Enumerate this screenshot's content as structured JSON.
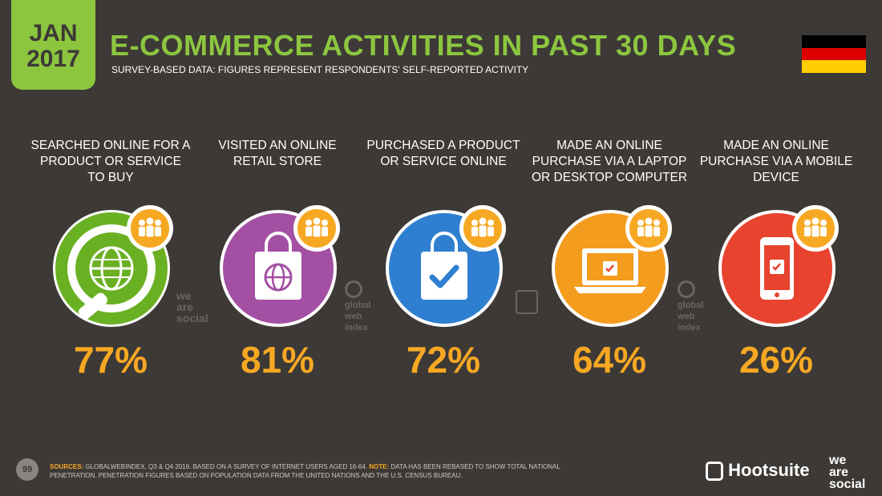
{
  "header": {
    "month": "JAN",
    "year": "2017",
    "title": "E-COMMERCE ACTIVITIES IN PAST 30 DAYS",
    "subtitle": "SURVEY-BASED DATA: FIGURES REPRESENT RESPONDENTS' SELF-REPORTED ACTIVITY"
  },
  "flag": {
    "colors": [
      "#000000",
      "#dd0000",
      "#ffce00"
    ]
  },
  "activities": [
    {
      "label": "SEARCHED ONLINE FOR A PRODUCT OR SERVICE TO BUY",
      "value": "77%",
      "color": "#6ab023",
      "icon": "globe-icon"
    },
    {
      "label": "VISITED AN ONLINE RETAIL STORE",
      "value": "81%",
      "color": "#a34fa3",
      "icon": "shopping-bag-globe-icon"
    },
    {
      "label": "PURCHASED A PRODUCT OR SERVICE ONLINE",
      "value": "72%",
      "color": "#2f7fd1",
      "icon": "shopping-bag-check-icon"
    },
    {
      "label": "MADE AN ONLINE PURCHASE VIA A LAPTOP OR DESKTOP COMPUTER",
      "value": "64%",
      "color": "#f39c1e",
      "icon": "laptop-icon"
    },
    {
      "label": "MADE AN ONLINE PURCHASE VIA A MOBILE DEVICE",
      "value": "26%",
      "color": "#e8432f",
      "icon": "mobile-phone-icon"
    }
  ],
  "watermarks": {
    "we_are_social": [
      "we",
      "are",
      "social"
    ],
    "gwi": [
      "global",
      "web",
      "index"
    ]
  },
  "footer": {
    "page": "99",
    "sources_label": "SOURCES:",
    "sources_text": "GLOBALWEBINDEX, Q3 & Q4 2016. BASED ON A SURVEY OF INTERNET USERS AGED 16-64.",
    "note_label": "NOTE:",
    "note_text": "DATA HAS BEEN REBASED TO SHOW TOTAL NATIONAL PENETRATION. PENETRATION FIGURES BASED ON POPULATION DATA FROM THE UNITED NATIONS AND THE U.S. CENSUS BUREAU.",
    "hootsuite": "Hootsuite",
    "was": [
      "we",
      "are",
      "social"
    ]
  }
}
